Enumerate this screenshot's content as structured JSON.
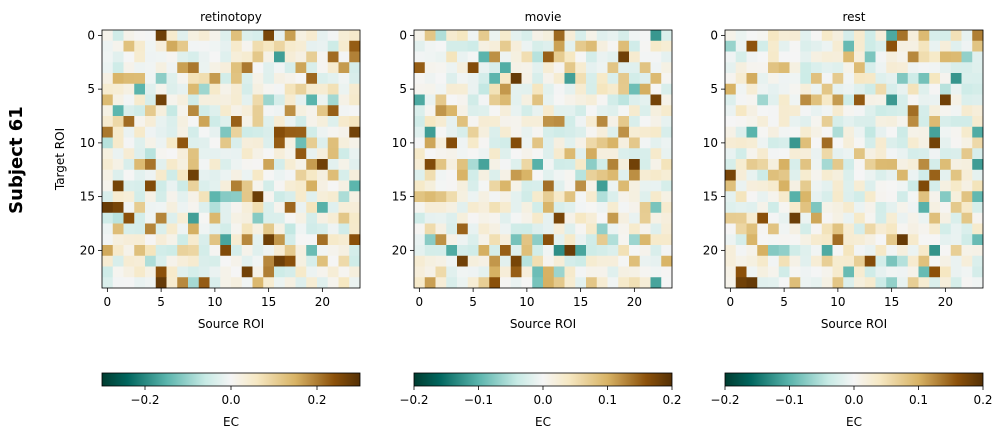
{
  "figure": {
    "suptitle": "Subject 61",
    "colormap": {
      "negative": "#01665e",
      "mid": "#f5f5f5",
      "positive": "#8c510a"
    }
  },
  "chart_data": [
    {
      "type": "heatmap",
      "title": "retinotopy",
      "xlabel": "Source ROI",
      "ylabel": "Target ROI",
      "n": 24,
      "xticks": [
        0,
        5,
        10,
        15,
        20
      ],
      "yticks": [
        0,
        5,
        10,
        15,
        20
      ],
      "vmin": -0.3,
      "vmax": 0.3,
      "colorbar": {
        "label": "EC",
        "ticks": [
          -0.2,
          0.0,
          0.2
        ],
        "tick_labels": [
          "−0.2",
          "0.0",
          "0.2"
        ]
      },
      "seed": 61
    },
    {
      "type": "heatmap",
      "title": "movie",
      "xlabel": "Source ROI",
      "ylabel": "",
      "n": 24,
      "xticks": [
        0,
        5,
        10,
        15,
        20
      ],
      "yticks": [
        0,
        5,
        10,
        15,
        20
      ],
      "vmin": -0.2,
      "vmax": 0.2,
      "colorbar": {
        "label": "EC",
        "ticks": [
          -0.2,
          -0.1,
          0.0,
          0.1,
          0.2
        ],
        "tick_labels": [
          "−0.2",
          "−0.1",
          "0.0",
          "0.1",
          "0.2"
        ]
      },
      "seed": 62
    },
    {
      "type": "heatmap",
      "title": "rest",
      "xlabel": "Source ROI",
      "ylabel": "",
      "n": 24,
      "xticks": [
        0,
        5,
        10,
        15,
        20
      ],
      "yticks": [
        0,
        5,
        10,
        15,
        20
      ],
      "vmin": -0.2,
      "vmax": 0.2,
      "colorbar": {
        "label": "EC",
        "ticks": [
          -0.2,
          -0.1,
          0.0,
          0.1,
          0.2
        ],
        "tick_labels": [
          "−0.2",
          "−0.1",
          "0.0",
          "0.1",
          "0.2"
        ]
      },
      "seed": 63
    }
  ]
}
